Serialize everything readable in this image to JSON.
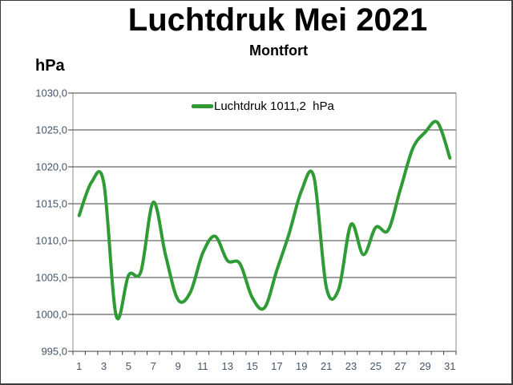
{
  "chart": {
    "title": "Luchtdruk Mei 2021",
    "subtitle": "Montfort",
    "y_unit_label": "hPa",
    "legend_label": "Luchtdruk 1011,2  hPa"
  },
  "chart_data": {
    "type": "line",
    "title": "Luchtdruk Mei 2021",
    "subtitle": "Montfort",
    "xlabel": "",
    "ylabel": "hPa",
    "legend_entries": [
      "Luchtdruk 1011,2  hPa"
    ],
    "legend_position": "top-center-inside",
    "grid": true,
    "smooth": true,
    "x": [
      1,
      2,
      3,
      4,
      5,
      6,
      7,
      8,
      9,
      10,
      11,
      12,
      13,
      14,
      15,
      16,
      17,
      18,
      19,
      20,
      21,
      22,
      23,
      24,
      25,
      26,
      27,
      28,
      29,
      30,
      31
    ],
    "series": [
      {
        "name": "Luchtdruk",
        "color": "#2E9B34",
        "line_width": 4,
        "values": [
          1013.4,
          1017.9,
          1017.8,
          999.8,
          1005.3,
          1005.8,
          1015.2,
          1008.0,
          1002.0,
          1003.0,
          1008.3,
          1010.6,
          1007.3,
          1006.9,
          1002.3,
          1000.9,
          1006.0,
          1011.0,
          1016.8,
          1018.6,
          1003.7,
          1003.4,
          1012.2,
          1008.1,
          1011.8,
          1011.4,
          1017.0,
          1022.5,
          1024.7,
          1026.0,
          1021.2
        ]
      }
    ],
    "ylim": [
      995,
      1030
    ],
    "ytick_interval": 5,
    "ytick_labels": [
      "995,0",
      "1000,0",
      "1005,0",
      "1010,0",
      "1015,0",
      "1020,0",
      "1025,0",
      "1030,0"
    ],
    "xtick_labels": [
      "1",
      "3",
      "5",
      "7",
      "9",
      "11",
      "13",
      "15",
      "17",
      "19",
      "21",
      "23",
      "25",
      "27",
      "29",
      "31"
    ],
    "colors": {
      "line": "#2E9B34",
      "gridline": "#3f3f3f",
      "plot_border": "#8a8a8a",
      "tick_label": "#44546A",
      "text": "#000000",
      "background": "#ffffff"
    }
  }
}
